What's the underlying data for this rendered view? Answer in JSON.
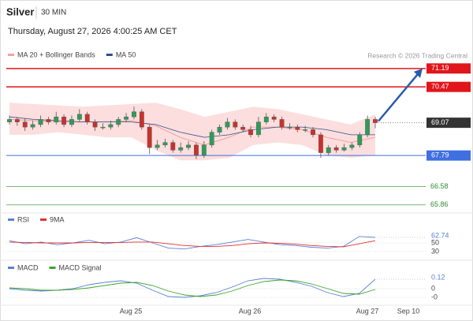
{
  "header": {
    "symbol": "Silver",
    "interval": "30 MIN",
    "timestamp": "Thursday, August 27, 2026 4:00:25 AM CET"
  },
  "chart_data": [
    {
      "type": "candlestick",
      "legend": [
        {
          "name": "MA 20 + Bollinger Bands",
          "color": "#f4a0a0"
        },
        {
          "name": "MA 50",
          "color": "#2b4f8f"
        }
      ],
      "credit": "Research © 2026 Trading Central",
      "up_color": "#2e9c58",
      "down_color": "#c8322b",
      "band_color": "#fbd3d3",
      "open": [
        69.1,
        69.2,
        69.1,
        68.9,
        69.0,
        69.2,
        69.1,
        69.3,
        69.0,
        69.2,
        69.4,
        69.1,
        68.9,
        68.9,
        69.0,
        69.2,
        69.3,
        69.5,
        68.9,
        68.1,
        68.2,
        68.3,
        68.0,
        68.1,
        68.2,
        67.8,
        68.2,
        68.7,
        68.9,
        69.1,
        68.9,
        68.8,
        68.6,
        69.1,
        69.3,
        69.2,
        68.9,
        68.9,
        68.8,
        68.8,
        68.6,
        67.9,
        68.1,
        68.0,
        68.1,
        68.2,
        68.6,
        69.2
      ],
      "high": [
        69.35,
        69.3,
        69.25,
        69.15,
        69.35,
        69.3,
        69.5,
        69.4,
        69.35,
        69.6,
        69.5,
        69.2,
        69.05,
        69.15,
        69.3,
        69.45,
        69.7,
        69.6,
        69.0,
        68.4,
        68.45,
        68.4,
        68.3,
        68.35,
        68.3,
        68.35,
        68.8,
        69.0,
        69.25,
        69.2,
        69.0,
        68.95,
        69.3,
        69.45,
        69.4,
        69.3,
        69.05,
        69.0,
        68.95,
        68.9,
        68.7,
        68.2,
        68.2,
        68.25,
        68.3,
        68.7,
        69.35,
        69.3
      ],
      "low": [
        69.0,
        68.95,
        68.75,
        68.8,
        68.9,
        69.0,
        69.0,
        68.9,
        68.9,
        69.1,
        69.0,
        68.75,
        68.8,
        68.8,
        68.9,
        69.1,
        69.2,
        68.8,
        67.85,
        68.0,
        68.1,
        67.9,
        67.9,
        68.0,
        67.65,
        67.7,
        68.1,
        68.6,
        68.8,
        68.8,
        68.7,
        68.5,
        68.5,
        69.0,
        69.1,
        68.8,
        68.8,
        68.7,
        68.7,
        68.5,
        67.7,
        67.8,
        67.9,
        67.95,
        68.0,
        68.1,
        68.5,
        68.85
      ],
      "close": [
        69.2,
        69.1,
        68.9,
        69.0,
        69.2,
        69.1,
        69.3,
        69.0,
        69.2,
        69.4,
        69.1,
        68.9,
        68.9,
        69.0,
        69.2,
        69.3,
        69.5,
        68.9,
        68.1,
        68.2,
        68.3,
        68.0,
        68.1,
        68.2,
        67.8,
        68.2,
        68.7,
        68.9,
        69.1,
        68.9,
        68.8,
        68.6,
        69.1,
        69.3,
        69.2,
        68.9,
        68.9,
        68.8,
        68.8,
        68.6,
        67.9,
        68.1,
        68.0,
        68.1,
        68.2,
        68.6,
        69.2,
        69.07
      ],
      "bands": {
        "upper": [
          69.85,
          69.8,
          69.75,
          69.7,
          69.75,
          69.8,
          69.85,
          69.6,
          69.3,
          69.5,
          69.7,
          69.6,
          69.4,
          69.2,
          69.0,
          69.4
        ],
        "lower": [
          68.6,
          68.6,
          68.7,
          68.6,
          68.5,
          68.5,
          68.0,
          67.6,
          67.6,
          67.7,
          68.2,
          68.3,
          68.2,
          67.8,
          67.7,
          67.8
        ],
        "ma20": [
          69.2,
          69.15,
          69.1,
          69.1,
          69.1,
          69.15,
          68.95,
          68.5,
          68.2,
          68.5,
          68.9,
          68.9,
          68.8,
          68.5,
          68.3,
          68.5
        ],
        "ma50": [
          69.3,
          69.2,
          69.15,
          69.1,
          69.1,
          69.1,
          69.0,
          68.7,
          68.5,
          68.6,
          68.8,
          68.9,
          68.9,
          68.8,
          68.6,
          68.6
        ]
      },
      "levels": [
        {
          "value": 71.19,
          "color": "#e0161b",
          "style": "box"
        },
        {
          "value": 70.47,
          "color": "#e0161b",
          "style": "box"
        },
        {
          "value": 69.07,
          "color": "#333333",
          "style": "last"
        },
        {
          "value": 67.79,
          "color": "#3f6fe0",
          "style": "box"
        },
        {
          "value": 66.58,
          "color": "#2e8b2e",
          "style": "text"
        },
        {
          "value": 65.86,
          "color": "#2e8b2e",
          "style": "text"
        }
      ],
      "ylim": [
        65.7,
        71.4
      ],
      "xlabels": [
        "Aug 25",
        "Aug 26",
        "Aug 27",
        "Sep 10"
      ]
    },
    {
      "type": "line",
      "series": [
        {
          "name": "RSI",
          "color": "#5b7fd6",
          "values": [
            55,
            48,
            52,
            46,
            50,
            56,
            48,
            52,
            62,
            50,
            38,
            36,
            42,
            46,
            52,
            58,
            52,
            46,
            44,
            40,
            38,
            42,
            65,
            62.74
          ]
        },
        {
          "name": "9MA",
          "color": "#e03030",
          "values": [
            52,
            51,
            50,
            50,
            50,
            51,
            51,
            51,
            52,
            52,
            48,
            44,
            42,
            42,
            44,
            48,
            50,
            49,
            47,
            44,
            42,
            41,
            48,
            55
          ]
        }
      ],
      "ylim": [
        22.7,
        88.2
      ],
      "yticks": [
        50,
        30
      ]
    },
    {
      "type": "line",
      "series": [
        {
          "name": "MACD",
          "color": "#5b7fd6",
          "values": [
            0.0,
            -0.02,
            -0.03,
            -0.02,
            0.0,
            0.05,
            0.08,
            0.1,
            0.07,
            -0.02,
            -0.1,
            -0.11,
            -0.09,
            -0.05,
            0.02,
            0.1,
            0.13,
            0.12,
            0.08,
            0.03,
            -0.05,
            -0.1,
            -0.06,
            0.12
          ]
        },
        {
          "name": "MACD Signal",
          "color": "#3aa52a",
          "values": [
            0.01,
            0.0,
            -0.02,
            -0.02,
            -0.01,
            0.01,
            0.04,
            0.07,
            0.08,
            0.04,
            -0.03,
            -0.08,
            -0.1,
            -0.08,
            -0.03,
            0.04,
            0.09,
            0.11,
            0.1,
            0.06,
            0.0,
            -0.06,
            -0.07,
            -0.01
          ]
        }
      ],
      "ylim": [
        -0.22,
        0.21
      ],
      "yticks": [
        0,
        {
          "value": -0.11,
          "label": "-0"
        }
      ]
    }
  ]
}
